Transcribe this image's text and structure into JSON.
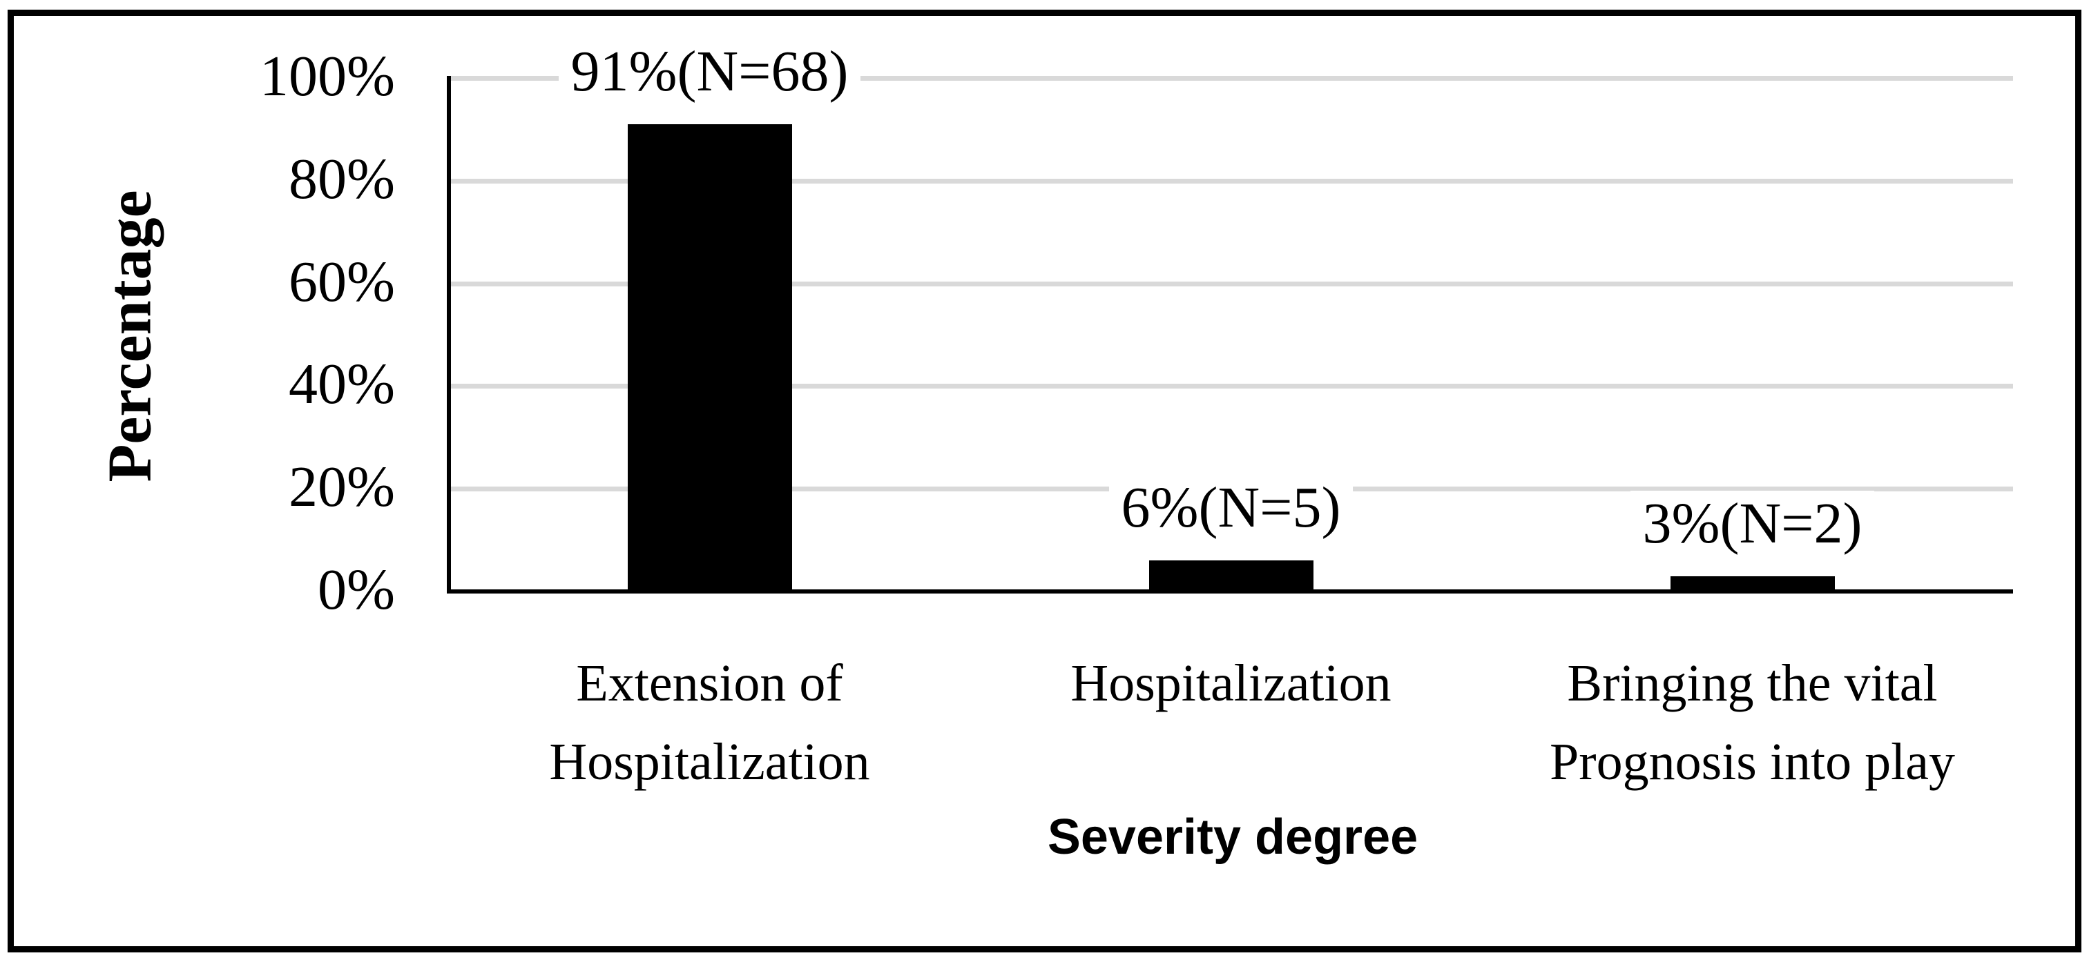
{
  "figure": {
    "background": "#ffffff",
    "border_color": "#000000"
  },
  "chart_data": {
    "type": "bar",
    "title": "",
    "categories": [
      "Extension of Hospitalization",
      "Hospitalization",
      "Bringing the vital Prognosis into play"
    ],
    "category_label_lines": [
      [
        "Extension of",
        "Hospitalization"
      ],
      [
        "Hospitalization"
      ],
      [
        "Bringing the vital",
        "Prognosis into play"
      ]
    ],
    "values": [
      91,
      6,
      3
    ],
    "counts": [
      68,
      5,
      2
    ],
    "data_labels": [
      "91%(N=68)",
      "6%(N=5)",
      "3%(N=2)"
    ],
    "xlabel": "Severity degree",
    "ylabel": "Percentage",
    "y_ticks": [
      {
        "label": "0%",
        "value": 0
      },
      {
        "label": "20%",
        "value": 20
      },
      {
        "label": "40%",
        "value": 40
      },
      {
        "label": "60%",
        "value": 60
      },
      {
        "label": "80%",
        "value": 80
      },
      {
        "label": "100%",
        "value": 100
      }
    ],
    "ylim": [
      0,
      100
    ],
    "grid": true,
    "legend": "none",
    "bar_color": "#000000",
    "gridline_color": "#d9d9d9",
    "axis_color": "#000000"
  }
}
